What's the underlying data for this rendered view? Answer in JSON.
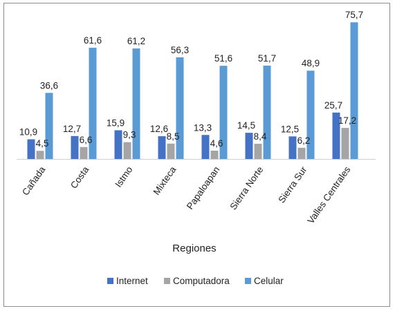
{
  "chart_data": {
    "type": "bar",
    "title": "",
    "xlabel": "Regiones",
    "ylabel": "",
    "ylim": [
      0,
      80
    ],
    "grid": false,
    "legend": "bottom",
    "categories": [
      "Cañada",
      "Costa",
      "Istmo",
      "Mixteca",
      "Papaloapan",
      "Sierra Norte",
      "Sierra Sur",
      "Valles Centrales"
    ],
    "series": [
      {
        "name": "Internet",
        "color": "#4472c4",
        "values": [
          10.9,
          12.7,
          15.9,
          12.6,
          13.3,
          14.5,
          12.5,
          25.7
        ]
      },
      {
        "name": "Computadora",
        "color": "#a5a5a5",
        "values": [
          4.5,
          6.6,
          9.3,
          8.5,
          4.6,
          8.4,
          6.2,
          17.2
        ]
      },
      {
        "name": "Celular",
        "color": "#5b9bd5",
        "values": [
          36.6,
          61.6,
          61.2,
          56.3,
          51.6,
          51.7,
          48.9,
          75.7
        ]
      }
    ],
    "data_labels": [
      [
        "10,9",
        "12,7",
        "15,9",
        "12,6",
        "13,3",
        "14,5",
        "12,5",
        "25,7"
      ],
      [
        "4,5",
        "6,6",
        "9,3",
        "8,5",
        "4,6",
        "8,4",
        "6,2",
        "17,2"
      ],
      [
        "36,6",
        "61,6",
        "61,2",
        "56,3",
        "51,6",
        "51,7",
        "48,9",
        "75,7"
      ]
    ]
  }
}
